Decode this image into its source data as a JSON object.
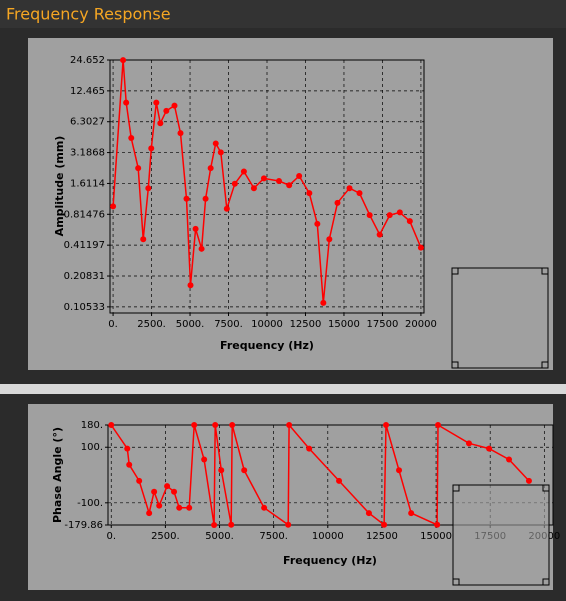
{
  "header": {
    "title": "Frequency Response"
  },
  "chart_data": [
    {
      "type": "line",
      "y_label": "Amplitude (mm)",
      "x_label": "Frequency (Hz)",
      "color": "#ff0000",
      "log_y": true,
      "grid": true,
      "x": [
        0,
        650,
        850,
        1180,
        1630,
        1960,
        2290,
        2480,
        2810,
        3070,
        3460,
        3990,
        4380,
        4770,
        5030,
        5360,
        5750,
        6010,
        6340,
        6670,
        7000,
        7390,
        7910,
        8500,
        9150,
        9800,
        10780,
        11440,
        12090,
        12750,
        13270,
        13660,
        14050,
        14580,
        15360,
        16010,
        16670,
        17320,
        17970,
        18630,
        19280,
        20000
      ],
      "values": [
        0.97,
        24.6,
        9.6,
        4.4,
        2.26,
        0.47,
        1.45,
        3.5,
        9.6,
        6.1,
        8,
        9,
        4.9,
        1.15,
        0.17,
        0.59,
        0.38,
        1.15,
        2.26,
        3.9,
        3.2,
        0.92,
        1.6,
        2.1,
        1.45,
        1.8,
        1.7,
        1.55,
        1.9,
        1.3,
        0.66,
        0.115,
        0.47,
        1.05,
        1.45,
        1.3,
        0.8,
        0.52,
        0.8,
        0.85,
        0.7,
        0.39
      ],
      "xlim": [
        -200,
        20200
      ],
      "ylim": [
        0.092,
        24.652
      ],
      "xticks": [
        {
          "value": 0,
          "label": "0."
        },
        {
          "value": 2500,
          "label": "2500."
        },
        {
          "value": 5000,
          "label": "5000."
        },
        {
          "value": 7500,
          "label": "7500."
        },
        10000,
        12500,
        15000,
        17500,
        20000
      ],
      "yticks": [
        0.10533,
        0.20831,
        0.41197,
        0.81476,
        1.6114,
        3.1868,
        6.3027,
        12.465,
        24.652
      ]
    },
    {
      "type": "line",
      "y_label": "Phase Angle (°)",
      "x_label": "Frequency (Hz)",
      "color": "#ff0000",
      "log_y": false,
      "grid": true,
      "x": [
        0,
        740,
        830,
        1290,
        1750,
        1980,
        2215,
        2580,
        2900,
        3140,
        3600,
        3830,
        4290,
        4750,
        4800,
        5080,
        5540,
        5585,
        6140,
        7060,
        8170,
        8215,
        9140,
        10520,
        11900,
        12600,
        12690,
        13290,
        13850,
        15050,
        15090,
        16520,
        17450,
        18370,
        19290
      ],
      "values": [
        180,
        95,
        37,
        -21,
        -137,
        -60,
        -110,
        -40,
        -60,
        -118,
        -118,
        180,
        56,
        -179.86,
        180,
        17,
        -179,
        180,
        17,
        -118,
        -179,
        180,
        95,
        -21,
        -137,
        -179,
        180,
        17,
        -137,
        -179,
        180,
        114,
        95,
        56,
        -21
      ],
      "xlim": [
        -150,
        20400
      ],
      "ylim": [
        -179.86,
        180
      ],
      "xticks": [
        {
          "value": 0,
          "label": "0."
        },
        {
          "value": 2500,
          "label": "2500."
        },
        {
          "value": 5000,
          "label": "5000."
        },
        {
          "value": 7500,
          "label": "7500."
        },
        10000,
        12500,
        15000,
        17500,
        20000
      ],
      "yticks": [
        {
          "value": 180,
          "label": "180."
        },
        {
          "value": 100,
          "label": "100."
        },
        {
          "value": -100,
          "label": "-100."
        },
        -179.86
      ]
    }
  ]
}
